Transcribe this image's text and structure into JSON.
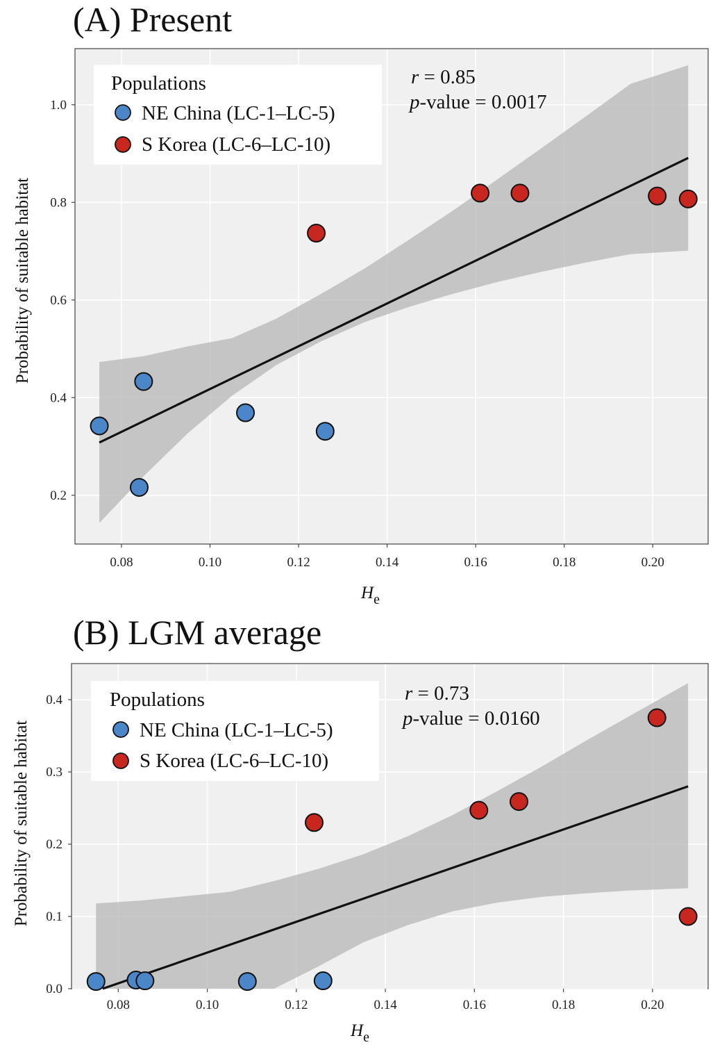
{
  "chart_data": [
    {
      "type": "scatter",
      "panel": "A",
      "title": "(A) Present",
      "xlabel": "H",
      "xlabel_sub": "e",
      "ylabel": "Probability of suitable habitat",
      "xlim": [
        0.0695,
        0.2125
      ],
      "ylim": [
        0.1,
        1.115
      ],
      "x_ticks": [
        0.08,
        0.1,
        0.12,
        0.14,
        0.16,
        0.18,
        0.2
      ],
      "x_tick_labels": [
        "0.08",
        "0.10",
        "0.12",
        "0.14",
        "0.16",
        "0.18",
        "0.20"
      ],
      "y_ticks": [
        0.2,
        0.4,
        0.6,
        0.8,
        1.0
      ],
      "y_tick_labels": [
        "0.2",
        "0.4",
        "0.6",
        "0.8",
        "1.0"
      ],
      "grid": true,
      "legend_title": "Populations",
      "legend_placement": "top-left",
      "series": [
        {
          "name": "NE China (LC-1–LC-5)",
          "color": "#4a86c8",
          "points": [
            [
              0.075,
              0.342
            ],
            [
              0.084,
              0.216
            ],
            [
              0.085,
              0.433
            ],
            [
              0.108,
              0.369
            ],
            [
              0.126,
              0.331
            ]
          ]
        },
        {
          "name": "S Korea (LC-6–LC-10)",
          "color": "#c8271f",
          "points": [
            [
              0.124,
              0.737
            ],
            [
              0.161,
              0.819
            ],
            [
              0.17,
              0.819
            ],
            [
              0.201,
              0.813
            ],
            [
              0.208,
              0.807
            ]
          ]
        }
      ],
      "regression": {
        "x": [
          0.075,
          0.208
        ],
        "y": [
          0.308,
          0.891
        ]
      },
      "confidence_band": {
        "x": [
          0.075,
          0.085,
          0.095,
          0.105,
          0.115,
          0.125,
          0.135,
          0.145,
          0.155,
          0.165,
          0.175,
          0.185,
          0.195,
          0.208
        ],
        "lower": [
          0.143,
          0.239,
          0.327,
          0.404,
          0.467,
          0.515,
          0.555,
          0.586,
          0.613,
          0.637,
          0.658,
          0.677,
          0.694,
          0.701
        ],
        "upper": [
          0.473,
          0.485,
          0.505,
          0.522,
          0.562,
          0.612,
          0.665,
          0.724,
          0.784,
          0.848,
          0.912,
          0.977,
          1.043,
          1.081
        ]
      },
      "stats": {
        "r_label": "r",
        "r_value": " = 0.85",
        "p_label": "p",
        "p_value": "-value = 0.0017"
      }
    },
    {
      "type": "scatter",
      "panel": "B",
      "title": "(B) LGM average",
      "xlabel": "H",
      "xlabel_sub": "e",
      "ylabel": "Probability of suitable habitat",
      "xlim": [
        0.0695,
        0.2125
      ],
      "ylim": [
        0.0,
        0.45
      ],
      "x_ticks": [
        0.08,
        0.1,
        0.12,
        0.14,
        0.16,
        0.18,
        0.2
      ],
      "x_tick_labels": [
        "0.08",
        "0.10",
        "0.12",
        "0.14",
        "0.16",
        "0.18",
        "0.20"
      ],
      "y_ticks": [
        0.0,
        0.1,
        0.2,
        0.3,
        0.4
      ],
      "y_tick_labels": [
        "0.0",
        "0.1",
        "0.2",
        "0.3",
        "0.4"
      ],
      "grid": true,
      "legend_title": "Populations",
      "legend_placement": "top-left",
      "series": [
        {
          "name": "NE China (LC-1–LC-5)",
          "color": "#4a86c8",
          "points": [
            [
              0.075,
              0.01
            ],
            [
              0.084,
              0.012
            ],
            [
              0.086,
              0.011
            ],
            [
              0.109,
              0.01
            ],
            [
              0.126,
              0.011
            ]
          ]
        },
        {
          "name": "S Korea (LC-6–LC-10)",
          "color": "#c8271f",
          "points": [
            [
              0.124,
              0.23
            ],
            [
              0.161,
              0.247
            ],
            [
              0.17,
              0.259
            ],
            [
              0.201,
              0.375
            ],
            [
              0.208,
              0.1
            ]
          ]
        }
      ],
      "regression": {
        "x": [
          0.0765,
          0.208
        ],
        "y": [
          0.0,
          0.28
        ]
      },
      "confidence_band": {
        "x": [
          0.075,
          0.085,
          0.095,
          0.105,
          0.115,
          0.125,
          0.135,
          0.145,
          0.155,
          0.165,
          0.175,
          0.185,
          0.195,
          0.208
        ],
        "lower": [
          -0.12,
          -0.085,
          -0.05,
          -0.018,
          0.0,
          0.031,
          0.064,
          0.088,
          0.107,
          0.119,
          0.127,
          0.132,
          0.136,
          0.139
        ],
        "upper": [
          0.118,
          0.122,
          0.128,
          0.134,
          0.149,
          0.166,
          0.186,
          0.211,
          0.24,
          0.273,
          0.307,
          0.343,
          0.378,
          0.423
        ]
      },
      "stats": {
        "r_label": "r",
        "r_value": " = 0.73",
        "p_label": "p",
        "p_value": "-value = 0.0160"
      }
    }
  ]
}
